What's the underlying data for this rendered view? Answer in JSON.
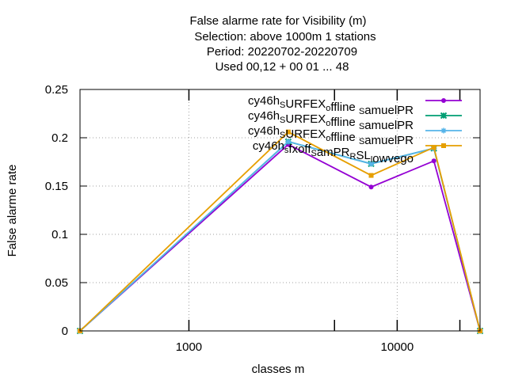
{
  "chart_data": {
    "type": "line",
    "title_lines": [
      "False alarme rate  for Visibility (m)",
      "Selection: above 1000m      1 stations",
      "Period: 20220702-20220709",
      "Used  00,12  + 00 01 ... 48"
    ],
    "xlabel": "classes m",
    "ylabel": "False alarme rate",
    "x_scale": "log",
    "xlim": [
      300,
      25000
    ],
    "ylim": [
      0,
      0.25
    ],
    "x_ticks": [
      {
        "value": 1000,
        "label": "1000"
      },
      {
        "value": 10000,
        "label": "10000"
      }
    ],
    "x_minor_ticks": [
      5000,
      20000
    ],
    "y_ticks": [
      {
        "value": 0,
        "label": "0"
      },
      {
        "value": 0.05,
        "label": "0.05"
      },
      {
        "value": 0.1,
        "label": "0.1"
      },
      {
        "value": 0.15,
        "label": "0.15"
      },
      {
        "value": 0.2,
        "label": "0.2"
      },
      {
        "value": 0.25,
        "label": "0.25"
      }
    ],
    "grid": true,
    "legend_position": "top-right",
    "x": [
      300,
      3000,
      7500,
      15000,
      25000
    ],
    "series": [
      {
        "legend": [
          [
            "cy46h",
            ""
          ],
          [
            "S",
            "sub"
          ],
          [
            "URFEX",
            ""
          ],
          [
            "o",
            "sub"
          ],
          [
            "ffline ",
            ""
          ],
          [
            "S",
            "sub"
          ],
          [
            "amuelPR",
            ""
          ]
        ],
        "color": "#9400d3",
        "marker": "circle",
        "values": [
          0,
          0.193,
          0.149,
          0.176,
          0
        ]
      },
      {
        "legend": [
          [
            "cy46h",
            ""
          ],
          [
            "S",
            "sub"
          ],
          [
            "URFEX",
            ""
          ],
          [
            "o",
            "sub"
          ],
          [
            "ffline ",
            ""
          ],
          [
            "S",
            "sub"
          ],
          [
            "amuelPR",
            ""
          ]
        ],
        "color": "#009e73",
        "marker": "cross",
        "values": [
          0,
          0.196,
          0.173,
          0.189,
          0
        ]
      },
      {
        "legend": [
          [
            "cy46h",
            ""
          ],
          [
            "S",
            "sub"
          ],
          [
            "URFEX",
            ""
          ],
          [
            "o",
            "sub"
          ],
          [
            "ffline ",
            ""
          ],
          [
            "S",
            "sub"
          ],
          [
            "amuelPR",
            ""
          ]
        ],
        "color": "#56b4e9",
        "marker": "star",
        "values": [
          0,
          0.196,
          0.173,
          0.189,
          0
        ]
      },
      {
        "legend": [
          [
            "cy46h",
            ""
          ],
          [
            "s",
            "sub"
          ],
          [
            "fxoff",
            ""
          ],
          [
            "S",
            "sub"
          ],
          [
            "amPR",
            ""
          ],
          [
            "R",
            "sub"
          ],
          [
            "SL",
            ""
          ],
          [
            "l",
            "sub"
          ],
          [
            "owvego",
            ""
          ]
        ],
        "color": "#e69f00",
        "marker": "square",
        "values": [
          0,
          0.206,
          0.161,
          0.19,
          0
        ]
      }
    ]
  }
}
